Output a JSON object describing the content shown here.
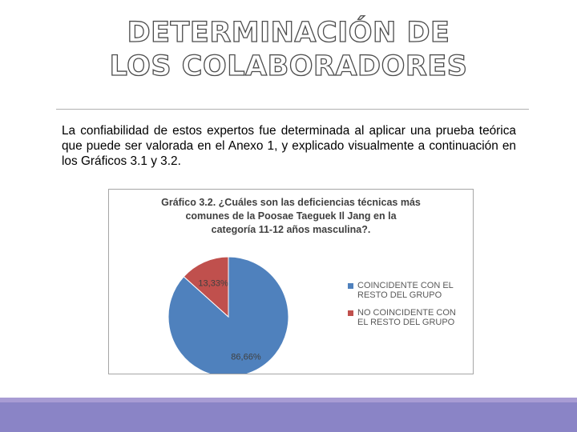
{
  "slide": {
    "title_line1": "DETERMINACIÓN DE",
    "title_line2": "LOS COLABORADORES",
    "body": "La confiabilidad de estos expertos fue determinada al aplicar una prueba teórica que puede ser valorada en el Anexo 1, y explicado visualmente a continuación en los Gráficos 3.1 y 3.2."
  },
  "chart_data": {
    "type": "pie",
    "title_line1": "Gráfico 3.2. ¿Cuáles son las deficiencias técnicas más",
    "title_line2": "comunes de la Poosae Taeguek Il Jang en la",
    "title_line3": "categoría 11-12 años masculina?.",
    "series": [
      {
        "name": "COINCIDENTE CON EL RESTO DEL GRUPO",
        "value": 86.66,
        "label": "86,66%",
        "color": "#4f81bd"
      },
      {
        "name": "NO COINCIDENTE CON EL RESTO DEL GRUPO",
        "value": 13.33,
        "label": "13,33%",
        "color": "#c0504d"
      }
    ],
    "legend_position": "right"
  },
  "colors": {
    "accent": "#8a84c6",
    "rule": "#b0b0b0"
  }
}
